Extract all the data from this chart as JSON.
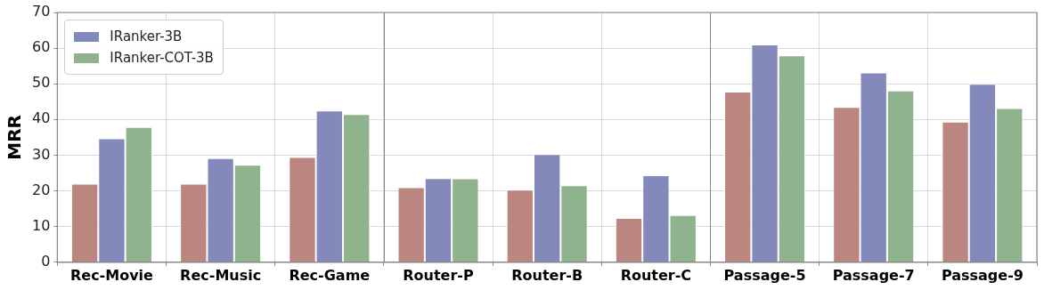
{
  "chart_data": {
    "type": "bar",
    "ylabel": "MRR",
    "categories": [
      "Rec-Movie",
      "Rec-Music",
      "Rec-Game",
      "Router-P",
      "Router-B",
      "Router-C",
      "Passage-5",
      "Passage-7",
      "Passage-9"
    ],
    "series": [
      {
        "color": "#bc8680",
        "values": [
          22,
          22,
          29.5,
          21,
          20.3,
          12.4,
          47.8,
          43.5,
          39.4
        ]
      },
      {
        "name": "IRanker-3B",
        "color": "#8489bb",
        "values": [
          34.7,
          29.2,
          42.5,
          23.6,
          30.3,
          24.4,
          61,
          53.2,
          50
        ]
      },
      {
        "name": "IRanker-COT-3B",
        "color": "#8fb38d",
        "values": [
          37.9,
          27.3,
          41.5,
          23.5,
          21.6,
          13.2,
          58,
          48.1,
          43.2
        ]
      }
    ],
    "ylim": [
      0,
      70
    ],
    "yticks": [
      0,
      10,
      20,
      30,
      40,
      50,
      60,
      70
    ],
    "grid": true,
    "legend": "top left"
  }
}
